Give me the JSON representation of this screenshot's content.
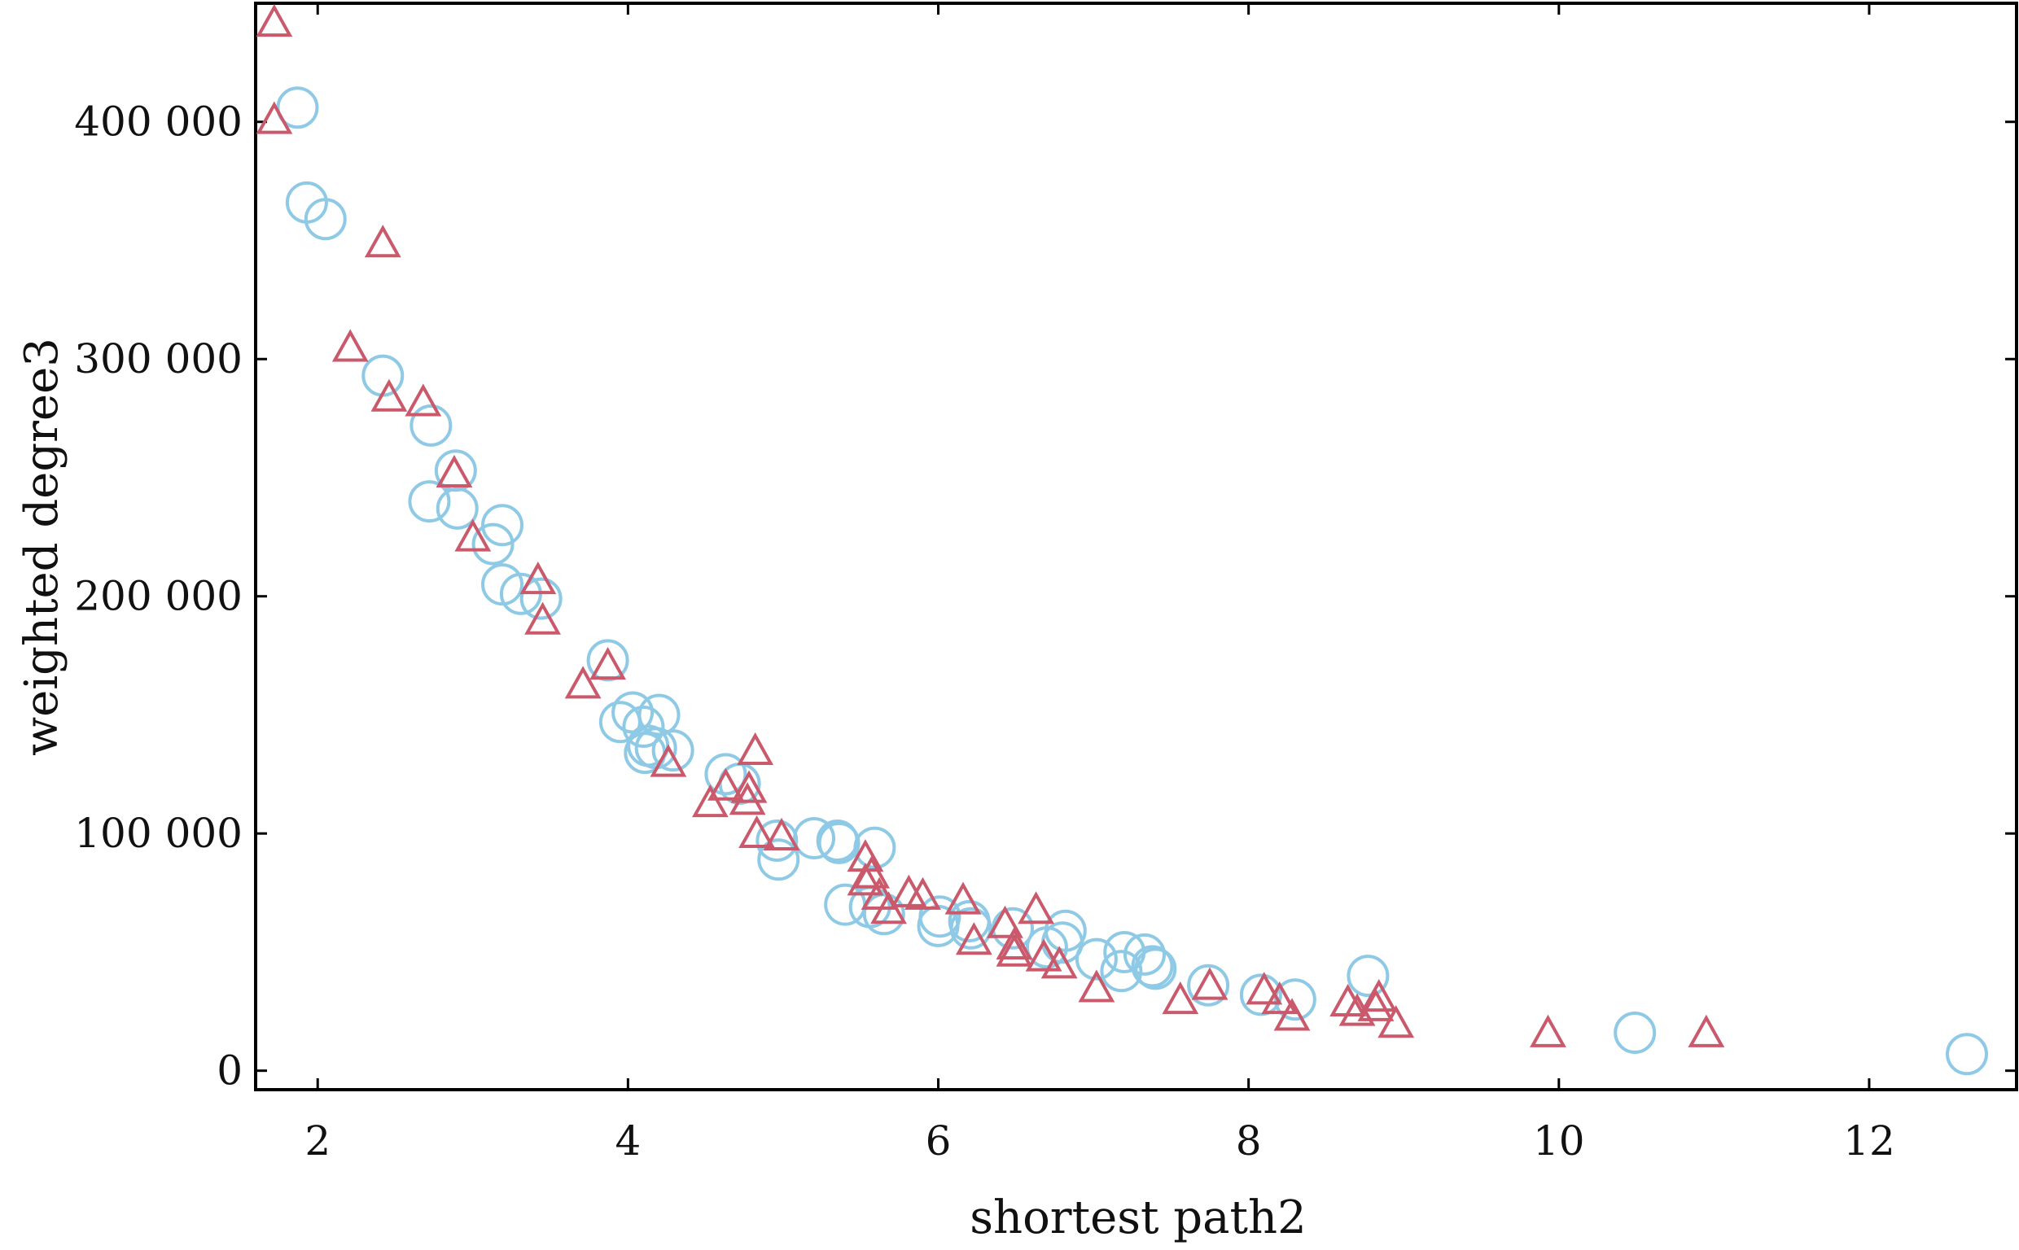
{
  "chart_data": {
    "type": "scatter",
    "xlabel": "shortest path2",
    "ylabel": "weighted degree3",
    "xlim": [
      1.6,
      12.95
    ],
    "ylim": [
      -8000,
      450000
    ],
    "x_ticks": [
      2,
      4,
      6,
      8,
      10,
      12
    ],
    "y_ticks": [
      0,
      100000,
      200000,
      300000,
      400000
    ],
    "x_tick_labels": [
      "2",
      "4",
      "6",
      "8",
      "10",
      "12"
    ],
    "y_tick_labels": [
      "0",
      "100 000",
      "200 000",
      "300 000",
      "400 000"
    ],
    "grid": false,
    "legend": "none",
    "series": [
      {
        "marker": "circle",
        "color": "#8ecae6",
        "points": [
          [
            1.87,
            406000
          ],
          [
            1.93,
            366000
          ],
          [
            2.05,
            359000
          ],
          [
            2.42,
            293000
          ],
          [
            2.73,
            272000
          ],
          [
            2.89,
            253000
          ],
          [
            2.72,
            240000
          ],
          [
            2.9,
            237000
          ],
          [
            3.19,
            230000
          ],
          [
            3.13,
            222000
          ],
          [
            3.19,
            205000
          ],
          [
            3.31,
            201000
          ],
          [
            3.44,
            199000
          ],
          [
            3.87,
            173000
          ],
          [
            3.95,
            147000
          ],
          [
            4.03,
            151000
          ],
          [
            4.1,
            145000
          ],
          [
            4.2,
            150000
          ],
          [
            4.13,
            137000
          ],
          [
            4.11,
            134000
          ],
          [
            4.18,
            136000
          ],
          [
            4.29,
            135000
          ],
          [
            4.63,
            125000
          ],
          [
            4.72,
            121000
          ],
          [
            4.96,
            97000
          ],
          [
            4.97,
            89000
          ],
          [
            5.2,
            98000
          ],
          [
            5.35,
            97000
          ],
          [
            5.36,
            96000
          ],
          [
            5.59,
            94000
          ],
          [
            5.4,
            70000
          ],
          [
            5.56,
            69000
          ],
          [
            5.65,
            66000
          ],
          [
            6.01,
            65000
          ],
          [
            6.0,
            61000
          ],
          [
            6.2,
            63000
          ],
          [
            6.21,
            60000
          ],
          [
            6.48,
            60000
          ],
          [
            6.82,
            59000
          ],
          [
            6.7,
            52000
          ],
          [
            6.8,
            54000
          ],
          [
            7.02,
            47000
          ],
          [
            7.2,
            50000
          ],
          [
            7.33,
            49000
          ],
          [
            7.18,
            42000
          ],
          [
            7.38,
            44000
          ],
          [
            7.4,
            43000
          ],
          [
            7.74,
            36000
          ],
          [
            8.08,
            32000
          ],
          [
            8.3,
            30000
          ],
          [
            8.77,
            40000
          ],
          [
            10.49,
            16000
          ],
          [
            12.63,
            7000
          ]
        ]
      },
      {
        "marker": "triangle",
        "color": "#c9596b",
        "points": [
          [
            1.72,
            441000
          ],
          [
            1.72,
            400000
          ],
          [
            2.42,
            348000
          ],
          [
            2.21,
            304000
          ],
          [
            2.46,
            283000
          ],
          [
            2.68,
            281000
          ],
          [
            2.88,
            251000
          ],
          [
            3.0,
            224000
          ],
          [
            3.42,
            206000
          ],
          [
            3.45,
            189000
          ],
          [
            3.71,
            162000
          ],
          [
            3.87,
            170000
          ],
          [
            4.26,
            129000
          ],
          [
            4.53,
            112000
          ],
          [
            4.63,
            119000
          ],
          [
            4.78,
            118000
          ],
          [
            4.77,
            113000
          ],
          [
            4.82,
            134000
          ],
          [
            4.83,
            99000
          ],
          [
            4.99,
            98000
          ],
          [
            5.53,
            89000
          ],
          [
            5.57,
            82000
          ],
          [
            5.53,
            79000
          ],
          [
            5.62,
            73000
          ],
          [
            5.68,
            67000
          ],
          [
            5.81,
            74000
          ],
          [
            5.9,
            73000
          ],
          [
            6.16,
            71000
          ],
          [
            6.23,
            54000
          ],
          [
            6.43,
            61000
          ],
          [
            6.49,
            52000
          ],
          [
            6.63,
            67000
          ],
          [
            6.49,
            49000
          ],
          [
            6.68,
            47000
          ],
          [
            6.78,
            44000
          ],
          [
            7.02,
            34000
          ],
          [
            7.56,
            29000
          ],
          [
            7.75,
            35000
          ],
          [
            8.1,
            33000
          ],
          [
            8.2,
            29000
          ],
          [
            8.28,
            22000
          ],
          [
            8.64,
            28000
          ],
          [
            8.7,
            24000
          ],
          [
            8.82,
            26000
          ],
          [
            8.84,
            30000
          ],
          [
            8.95,
            19000
          ],
          [
            9.93,
            15000
          ],
          [
            10.95,
            15000
          ]
        ]
      }
    ]
  }
}
